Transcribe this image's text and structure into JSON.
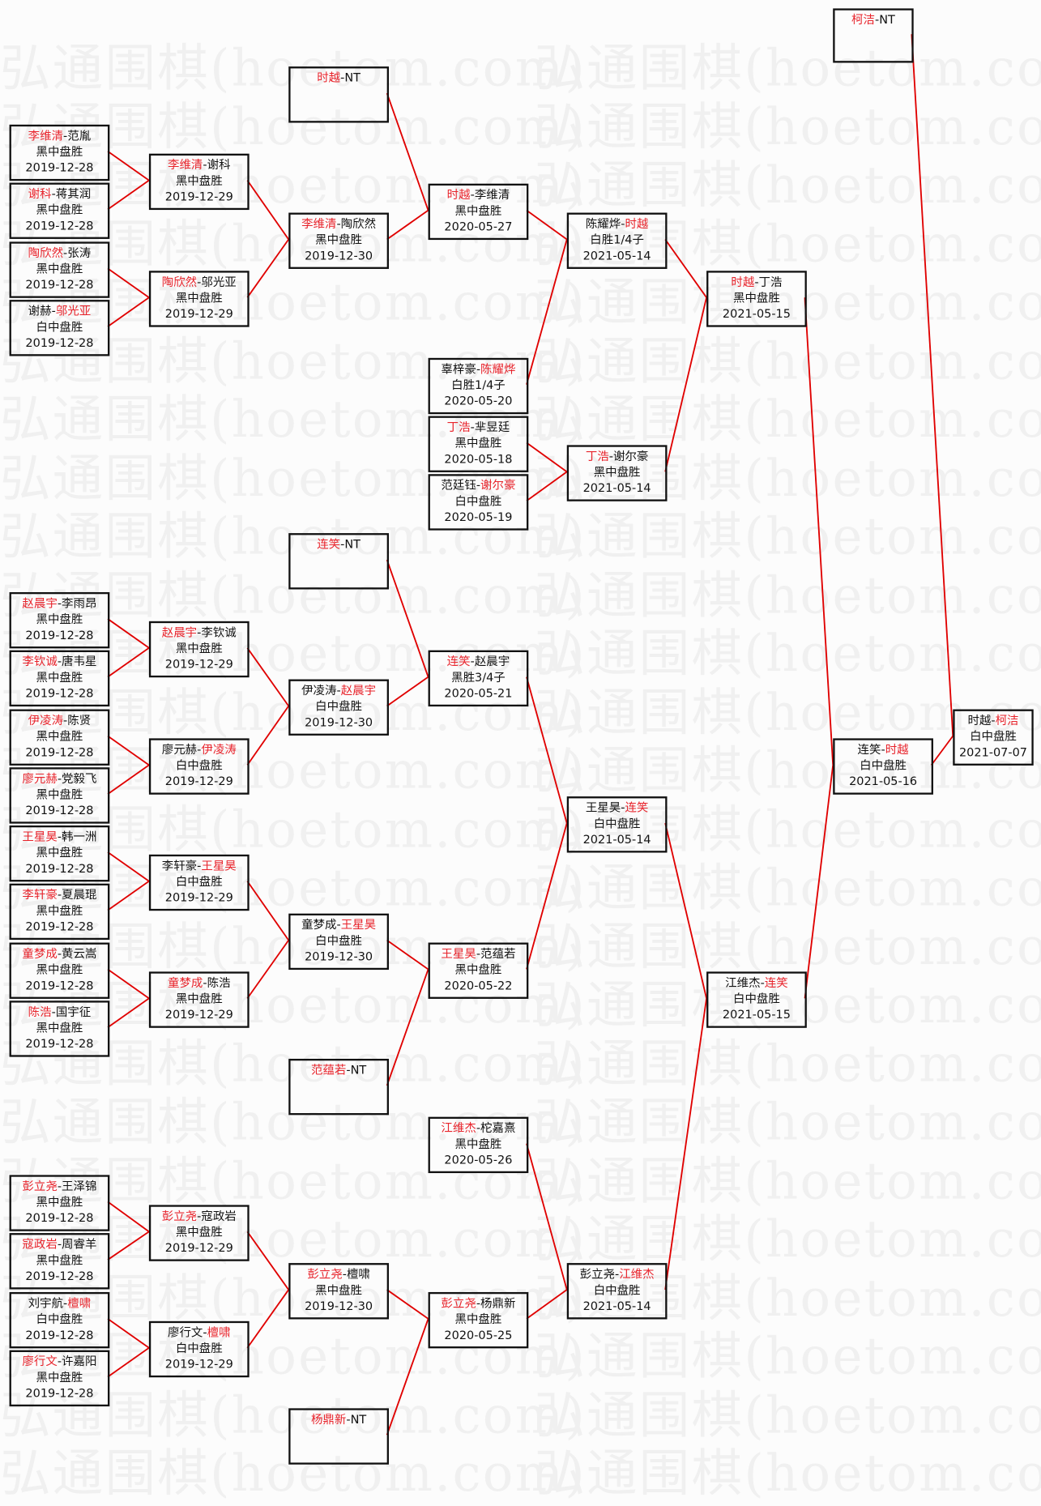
{
  "watermark": "弘通围棋(hoetom.com)",
  "colors": {
    "winner": "#e8242c",
    "connector": "#e00000",
    "border": "#111111"
  },
  "separator": "-",
  "matches": [
    {
      "p1": "李维清",
      "p2": "范胤",
      "winner": 0,
      "result": "黑中盘胜",
      "date": "2019-12-28"
    },
    {
      "p1": "谢科",
      "p2": "蒋其润",
      "winner": 0,
      "result": "黑中盘胜",
      "date": "2019-12-28"
    },
    {
      "p1": "陶欣然",
      "p2": "张涛",
      "winner": 0,
      "result": "黑中盘胜",
      "date": "2019-12-28"
    },
    {
      "p1": "谢赫",
      "p2": "邬光亚",
      "winner": 1,
      "result": "白中盘胜",
      "date": "2019-12-28"
    },
    {
      "p1": "赵晨宇",
      "p2": "李雨昂",
      "winner": 0,
      "result": "黑中盘胜",
      "date": "2019-12-28"
    },
    {
      "p1": "李钦诚",
      "p2": "唐韦星",
      "winner": 0,
      "result": "黑中盘胜",
      "date": "2019-12-28"
    },
    {
      "p1": "伊凌涛",
      "p2": "陈贤",
      "winner": 0,
      "result": "黑中盘胜",
      "date": "2019-12-28"
    },
    {
      "p1": "廖元赫",
      "p2": "党毅飞",
      "winner": 0,
      "result": "黑中盘胜",
      "date": "2019-12-28"
    },
    {
      "p1": "王星昊",
      "p2": "韩一洲",
      "winner": 0,
      "result": "黑中盘胜",
      "date": "2019-12-28"
    },
    {
      "p1": "李轩豪",
      "p2": "夏晨琨",
      "winner": 0,
      "result": "黑中盘胜",
      "date": "2019-12-28"
    },
    {
      "p1": "童梦成",
      "p2": "黄云嵩",
      "winner": 0,
      "result": "黑中盘胜",
      "date": "2019-12-28"
    },
    {
      "p1": "陈浩",
      "p2": "国宇征",
      "winner": 0,
      "result": "黑中盘胜",
      "date": "2019-12-28"
    },
    {
      "p1": "彭立尧",
      "p2": "王泽锦",
      "winner": 0,
      "result": "黑中盘胜",
      "date": "2019-12-28"
    },
    {
      "p1": "寇政岩",
      "p2": "周睿羊",
      "winner": 0,
      "result": "黑中盘胜",
      "date": "2019-12-28"
    },
    {
      "p1": "刘宇航",
      "p2": "檀啸",
      "winner": 1,
      "result": "白中盘胜",
      "date": "2019-12-28"
    },
    {
      "p1": "廖行文",
      "p2": "许嘉阳",
      "winner": 0,
      "result": "黑中盘胜",
      "date": "2019-12-28"
    },
    {
      "p1": "李维清",
      "p2": "谢科",
      "winner": 0,
      "result": "黑中盘胜",
      "date": "2019-12-29"
    },
    {
      "p1": "陶欣然",
      "p2": "邬光亚",
      "winner": 0,
      "result": "黑中盘胜",
      "date": "2019-12-29"
    },
    {
      "p1": "赵晨宇",
      "p2": "李钦诚",
      "winner": 0,
      "result": "黑中盘胜",
      "date": "2019-12-29"
    },
    {
      "p1": "廖元赫",
      "p2": "伊凌涛",
      "winner": 1,
      "result": "白中盘胜",
      "date": "2019-12-29"
    },
    {
      "p1": "李轩豪",
      "p2": "王星昊",
      "winner": 1,
      "result": "白中盘胜",
      "date": "2019-12-29"
    },
    {
      "p1": "童梦成",
      "p2": "陈浩",
      "winner": 0,
      "result": "黑中盘胜",
      "date": "2019-12-29"
    },
    {
      "p1": "彭立尧",
      "p2": "寇政岩",
      "winner": 0,
      "result": "黑中盘胜",
      "date": "2019-12-29"
    },
    {
      "p1": "廖行文",
      "p2": "檀啸",
      "winner": 1,
      "result": "白中盘胜",
      "date": "2019-12-29"
    },
    {
      "p1": "时越",
      "p2": "NT",
      "winner": 0,
      "result": "",
      "date": ""
    },
    {
      "p1": "李维清",
      "p2": "陶欣然",
      "winner": 0,
      "result": "黑中盘胜",
      "date": "2019-12-30"
    },
    {
      "p1": "连笑",
      "p2": "NT",
      "winner": 0,
      "result": "",
      "date": ""
    },
    {
      "p1": "伊凌涛",
      "p2": "赵晨宇",
      "winner": 1,
      "result": "白中盘胜",
      "date": "2019-12-30"
    },
    {
      "p1": "童梦成",
      "p2": "王星昊",
      "winner": 1,
      "result": "白中盘胜",
      "date": "2019-12-30"
    },
    {
      "p1": "范蕴若",
      "p2": "NT",
      "winner": 0,
      "result": "",
      "date": ""
    },
    {
      "p1": "彭立尧",
      "p2": "檀啸",
      "winner": 0,
      "result": "黑中盘胜",
      "date": "2019-12-30"
    },
    {
      "p1": "杨鼎新",
      "p2": "NT",
      "winner": 0,
      "result": "",
      "date": ""
    },
    {
      "p1": "时越",
      "p2": "李维清",
      "winner": 0,
      "result": "黑中盘胜",
      "date": "2020-05-27"
    },
    {
      "p1": "辜梓豪",
      "p2": "陈耀烨",
      "winner": 1,
      "result": "白胜1/4子",
      "date": "2020-05-20"
    },
    {
      "p1": "丁浩",
      "p2": "芈昱廷",
      "winner": 0,
      "result": "黑中盘胜",
      "date": "2020-05-18"
    },
    {
      "p1": "范廷钰",
      "p2": "谢尔豪",
      "winner": 1,
      "result": "白中盘胜",
      "date": "2020-05-19"
    },
    {
      "p1": "连笑",
      "p2": "赵晨宇",
      "winner": 0,
      "result": "黑胜3/4子",
      "date": "2020-05-21"
    },
    {
      "p1": "王星昊",
      "p2": "范蕴若",
      "winner": 0,
      "result": "黑中盘胜",
      "date": "2020-05-22"
    },
    {
      "p1": "江维杰",
      "p2": "柁嘉熹",
      "winner": 0,
      "result": "黑中盘胜",
      "date": "2020-05-26"
    },
    {
      "p1": "彭立尧",
      "p2": "杨鼎新",
      "winner": 0,
      "result": "黑中盘胜",
      "date": "2020-05-25"
    },
    {
      "p1": "陈耀烨",
      "p2": "时越",
      "winner": 1,
      "result": "白胜1/4子",
      "date": "2021-05-14"
    },
    {
      "p1": "丁浩",
      "p2": "谢尔豪",
      "winner": 0,
      "result": "黑中盘胜",
      "date": "2021-05-14"
    },
    {
      "p1": "王星昊",
      "p2": "连笑",
      "winner": 1,
      "result": "白中盘胜",
      "date": "2021-05-14"
    },
    {
      "p1": "彭立尧",
      "p2": "江维杰",
      "winner": 1,
      "result": "白中盘胜",
      "date": "2021-05-14"
    },
    {
      "p1": "时越",
      "p2": "丁浩",
      "winner": 0,
      "result": "黑中盘胜",
      "date": "2021-05-15"
    },
    {
      "p1": "江维杰",
      "p2": "连笑",
      "winner": 1,
      "result": "白中盘胜",
      "date": "2021-05-15"
    },
    {
      "p1": "连笑",
      "p2": "时越",
      "winner": 1,
      "result": "白中盘胜",
      "date": "2021-05-16"
    },
    {
      "p1": "柯洁",
      "p2": "NT",
      "winner": 0,
      "result": "",
      "date": ""
    },
    {
      "p1": "时越",
      "p2": "柯洁",
      "winner": 1,
      "result": "白中盘胜",
      "date": "2021-07-07"
    }
  ]
}
